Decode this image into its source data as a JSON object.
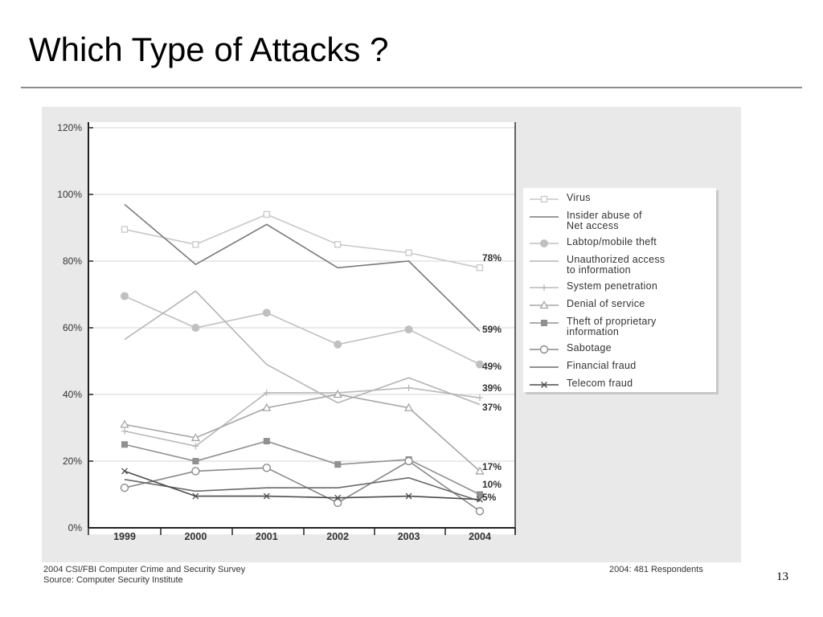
{
  "slide": {
    "title": "Which Type of Attacks ?",
    "page_number": "13"
  },
  "footer": {
    "survey": "2004 CSI/FBI Computer Crime and Security Survey",
    "source": "Source: Computer Security Institute",
    "respondents": "2004: 481 Respondents"
  },
  "chart_data": {
    "type": "line",
    "x": [
      "1999",
      "2000",
      "2001",
      "2002",
      "2003",
      "2004"
    ],
    "ylim": [
      0,
      120
    ],
    "yticks": [
      0,
      20,
      40,
      60,
      80,
      100,
      120
    ],
    "ytick_labels": [
      "0%",
      "20%",
      "40%",
      "60%",
      "80%",
      "100%",
      "120%"
    ],
    "grid": true,
    "legend_position": "right",
    "series": [
      {
        "name": "Virus",
        "values": [
          89.5,
          85,
          94,
          85,
          82.5,
          78
        ],
        "color": "#c8c8c8",
        "marker": "square-open"
      },
      {
        "name": "Insider abuse of\nNet access",
        "values": [
          97,
          79,
          91,
          78,
          80,
          59
        ],
        "color": "#7a7a7a",
        "marker": "none"
      },
      {
        "name": "Labtop/mobile theft",
        "values": [
          69.5,
          60,
          64.5,
          55,
          59.5,
          49
        ],
        "color": "#c0c0c0",
        "marker": "circle-filled"
      },
      {
        "name": "Unauthorized access\nto information",
        "values": [
          56.5,
          71,
          49,
          37.5,
          45,
          37
        ],
        "color": "#b4b4b4",
        "marker": "none"
      },
      {
        "name": "System penetration",
        "values": [
          29,
          24.5,
          40.5,
          40.5,
          42,
          39
        ],
        "color": "#b8b8b8",
        "marker": "plus"
      },
      {
        "name": "Denial of service",
        "values": [
          31,
          27,
          36,
          40,
          36,
          17
        ],
        "color": "#a6a6a6",
        "marker": "triangle-open"
      },
      {
        "name": "Theft of proprietary\ninformation",
        "values": [
          25,
          20,
          26,
          19,
          20.5,
          10
        ],
        "color": "#909090",
        "marker": "square-filled"
      },
      {
        "name": "Sabotage",
        "values": [
          12,
          17,
          18,
          7.5,
          20,
          5
        ],
        "color": "#8a8a8a",
        "marker": "circle-open"
      },
      {
        "name": "Financial fraud",
        "values": [
          14.5,
          11,
          12,
          12,
          15,
          8
        ],
        "color": "#6a6a6a",
        "marker": "none"
      },
      {
        "name": "Telecom fraud",
        "values": [
          17,
          9.5,
          9.5,
          9,
          9.5,
          8.5
        ],
        "color": "#4a4a4a",
        "marker": "x"
      }
    ],
    "end_labels": [
      "78%",
      "59%",
      "49%",
      "39%",
      "37%",
      "17%",
      "10%",
      "5%"
    ],
    "end_label_values": [
      78,
      59,
      49,
      39,
      37,
      17,
      10,
      5
    ]
  }
}
